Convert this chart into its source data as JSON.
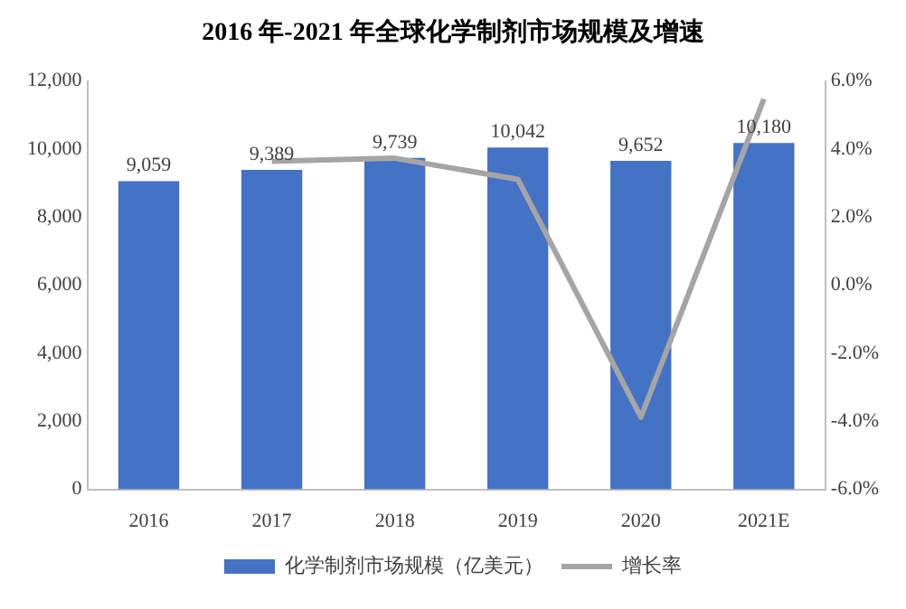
{
  "chart_data": {
    "type": "bar",
    "title": "2016 年-2021 年全球化学制剂市场规模及增速",
    "categories": [
      "2016",
      "2017",
      "2018",
      "2019",
      "2020",
      "2021E"
    ],
    "series": [
      {
        "name": "化学制剂市场规模（亿美元）",
        "color": "#4472c4",
        "values": [
          9059,
          9389,
          9739,
          10042,
          9652,
          10180
        ],
        "value_labels": [
          "9,059",
          "9,389",
          "9,739",
          "10,042",
          "9,652",
          "10,180"
        ]
      },
      {
        "name": "增长率",
        "type": "line",
        "axis": "y2",
        "color": "#a5a5a5",
        "values": [
          null,
          3.64,
          3.73,
          3.11,
          -3.88,
          5.47
        ]
      }
    ],
    "ylim": [
      0,
      12000
    ],
    "yticks": [
      0,
      {
        "value": 2000,
        "label": "2,000"
      },
      {
        "value": 4000,
        "label": "4,000"
      },
      {
        "value": 6000,
        "label": "6,000"
      },
      {
        "value": 8000,
        "label": "8,000"
      },
      {
        "value": 10000,
        "label": "10,000"
      },
      {
        "value": 12000,
        "label": "12,000"
      }
    ],
    "y2lim": [
      -6,
      6
    ],
    "y2ticks": [
      {
        "value": -6,
        "label": "-6.0%"
      },
      {
        "value": -4,
        "label": "-4.0%"
      },
      {
        "value": -2,
        "label": "-2.0%"
      },
      {
        "value": 0,
        "label": "0.0%"
      },
      {
        "value": 2,
        "label": "2.0%"
      },
      {
        "value": 4,
        "label": "4.0%"
      },
      {
        "value": 6,
        "label": "6.0%"
      }
    ],
    "legend": "bottom",
    "grid": false,
    "marker": "none"
  }
}
